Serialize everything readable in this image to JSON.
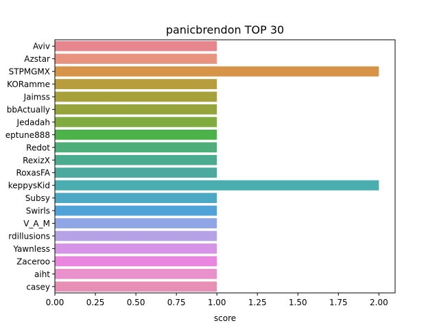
{
  "chart_data": {
    "type": "bar",
    "orientation": "horizontal",
    "title": "panicbrendon TOP 30",
    "xlabel": "score",
    "ylabel": "",
    "xlim": [
      0,
      2.1
    ],
    "xticks": [
      "0.00",
      "0.25",
      "0.50",
      "0.75",
      "1.00",
      "1.25",
      "1.50",
      "1.75",
      "2.00"
    ],
    "grid": false,
    "categories": [
      "Aviv",
      "Azstar",
      "STPMGMX",
      "KORamme",
      "Jaimss",
      "bbActually",
      "Jedadah",
      "eptune888",
      "Redot",
      "RexizX",
      "RoxasFA",
      "keppysKid",
      "Subsy",
      "Swirls",
      "V_A_M",
      "rdillusions",
      "Yawnless",
      "Zaceroo",
      "aiht",
      "casey"
    ],
    "values": [
      1,
      1,
      2,
      1,
      1,
      1,
      1,
      1,
      1,
      1,
      1,
      2,
      1,
      1,
      1,
      1,
      1,
      1,
      1,
      1
    ],
    "colors": [
      "#e8868f",
      "#e8937f",
      "#d69448",
      "#b79d3c",
      "#a6a13b",
      "#95a53b",
      "#80ab3e",
      "#4cb24a",
      "#4dae79",
      "#4bab8e",
      "#4ba99e",
      "#4aaeb1",
      "#4ca8c4",
      "#50a3d8",
      "#8fa5e6",
      "#b5a3e6",
      "#d594e6",
      "#e886e0",
      "#e891cb",
      "#e88fb6"
    ]
  }
}
